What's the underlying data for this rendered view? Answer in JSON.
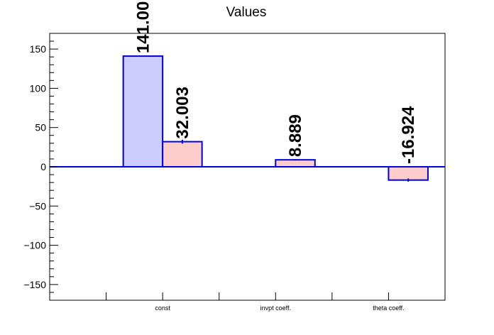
{
  "chart_data": {
    "type": "bar",
    "title": "Values",
    "xlabel": "",
    "ylabel": "",
    "categories": [
      "const",
      "invpt coeff.",
      "theta coeff."
    ],
    "series": [
      {
        "values": [
          141.0,
          0,
          0
        ],
        "value_labels": [
          "141.00",
          "",
          ""
        ],
        "fill_color": "#ccccff",
        "line_color": "#0000dd"
      },
      {
        "values": [
          32.003,
          8.889,
          -16.924
        ],
        "value_labels": [
          "32.003",
          "8.889",
          "-16.924"
        ],
        "errors": [
          2.5,
          0.8,
          2.0
        ],
        "fill_color": "#ffcccc",
        "line_color": "#0000dd"
      }
    ],
    "ylim": [
      -170,
      170
    ],
    "yticks": [
      -150,
      -100,
      -50,
      0,
      50,
      100,
      150
    ],
    "ytick_labels": [
      "−150",
      "−100",
      "−50",
      "0",
      "50",
      "100",
      "150"
    ],
    "grid": false,
    "legend": "none",
    "axis_color": "#000000",
    "zero_line_color": "#0000dd"
  }
}
